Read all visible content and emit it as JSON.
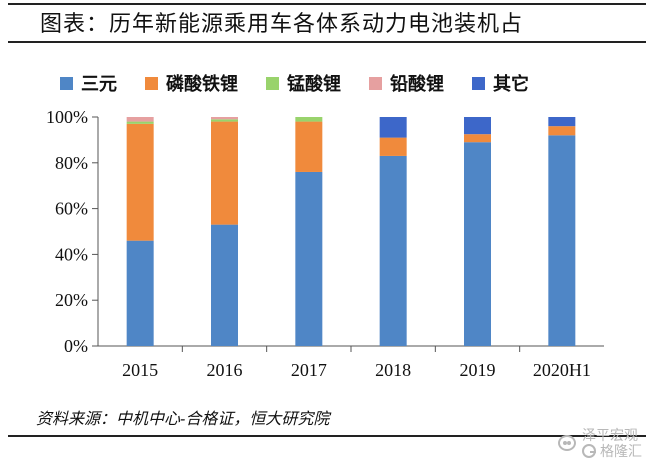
{
  "header": {
    "title": "图表：历年新能源乘用车各体系动力电池装机占"
  },
  "legend": [
    {
      "label": "三元",
      "color": "#4f86c6"
    },
    {
      "label": "磷酸铁锂",
      "color": "#f08a3c"
    },
    {
      "label": "锰酸锂",
      "color": "#99d36c"
    },
    {
      "label": "铅酸锂",
      "color": "#e6a0a0"
    },
    {
      "label": "其它",
      "color": "#3d67c9"
    }
  ],
  "chart_data": {
    "type": "bar",
    "title": "历年新能源乘用车各体系动力电池装机占",
    "xlabel": "",
    "ylabel": "",
    "ylim": [
      0,
      100
    ],
    "stacked": true,
    "y_tick_labels": [
      "0%",
      "20%",
      "40%",
      "60%",
      "80%",
      "100%"
    ],
    "categories": [
      "2015",
      "2016",
      "2017",
      "2018",
      "2019",
      "2020H1"
    ],
    "series": [
      {
        "name": "三元",
        "values": [
          46,
          53,
          76,
          83,
          89,
          92
        ]
      },
      {
        "name": "磷酸铁锂",
        "values": [
          51,
          45,
          22,
          8,
          3.5,
          4
        ]
      },
      {
        "name": "锰酸锂",
        "values": [
          1,
          1,
          2,
          0,
          0,
          0
        ]
      },
      {
        "name": "铅酸锂",
        "values": [
          2,
          1,
          0,
          0,
          0,
          0
        ]
      },
      {
        "name": "其它",
        "values": [
          0,
          0,
          0,
          9,
          7.5,
          4
        ]
      }
    ]
  },
  "footer": {
    "source": "资料来源：中机中心-合格证，恒大研究院"
  },
  "watermark": {
    "line1": "泽平宏观",
    "line2": "格隆汇"
  }
}
